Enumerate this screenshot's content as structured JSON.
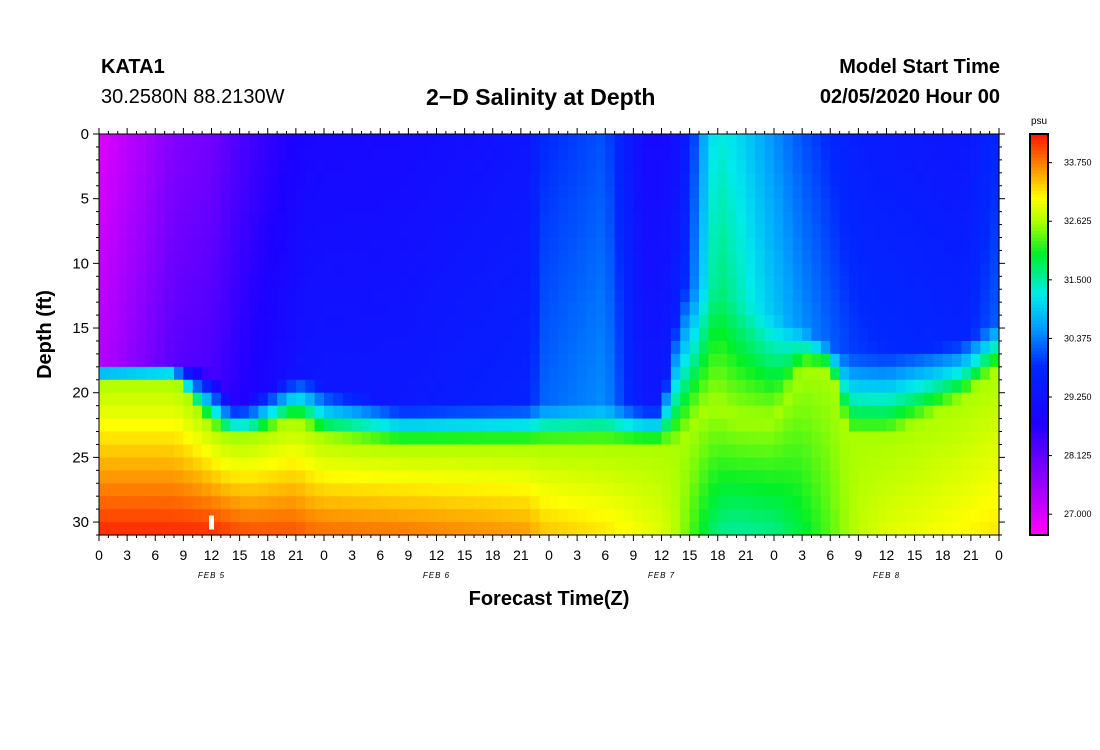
{
  "header": {
    "station": "KATA1",
    "coords": "30.2580N 88.2130W",
    "title": "2−D Salinity at Depth",
    "model_start_label": "Model Start Time",
    "model_start_date": "02/05/2020 Hour 00"
  },
  "chart_data": {
    "type": "heatmap",
    "title": "2−D Salinity at Depth",
    "xlabel": "Forecast Time(Z)",
    "ylabel": "Depth (ft)",
    "x_tick_labels": [
      "0",
      "3",
      "6",
      "9",
      "12",
      "15",
      "18",
      "21",
      "0",
      "3",
      "6",
      "9",
      "12",
      "15",
      "18",
      "21",
      "0",
      "3",
      "6",
      "9",
      "12",
      "15",
      "18",
      "21",
      "0",
      "3",
      "6",
      "9",
      "12",
      "15",
      "18",
      "21",
      "0"
    ],
    "x_range_hours": [
      0,
      96
    ],
    "day_labels": [
      {
        "label": "FEB 5",
        "hour": 12
      },
      {
        "label": "FEB 6",
        "hour": 36
      },
      {
        "label": "FEB 7",
        "hour": 60
      },
      {
        "label": "FEB 8",
        "hour": 84
      }
    ],
    "y_tick_labels": [
      "0",
      "5",
      "10",
      "15",
      "20",
      "25",
      "30"
    ],
    "y_range_ft": [
      0,
      31
    ],
    "colorbar": {
      "unit": "psu",
      "range": [
        26.6,
        34.3
      ],
      "tick_labels": [
        "33.750",
        "32.625",
        "31.500",
        "30.375",
        "29.250",
        "28.125",
        "27.000"
      ],
      "tick_values": [
        33.75,
        32.625,
        31.5,
        30.375,
        29.25,
        28.125,
        27.0
      ]
    },
    "key_hours": [
      0,
      8,
      12,
      14,
      16,
      21,
      22,
      24,
      32,
      46,
      47,
      54,
      58,
      60,
      62,
      63,
      65,
      66,
      68,
      72,
      75,
      78,
      80,
      82,
      84,
      92,
      96
    ],
    "surface_salinity": [
      26.9,
      27.8,
      27.95,
      28.2,
      28.4,
      28.8,
      28.9,
      28.95,
      29.0,
      29.3,
      29.8,
      30.1,
      29.0,
      29.0,
      29.2,
      29.7,
      31.0,
      31.3,
      31.1,
      30.5,
      30.1,
      29.8,
      29.6,
      29.5,
      29.45,
      29.3,
      29.8
    ],
    "halocline_top_ft": [
      17.5,
      17.5,
      18.5,
      20.5,
      20.5,
      18.5,
      18.5,
      19.5,
      21,
      21,
      21,
      21,
      21,
      21,
      12,
      12,
      12,
      12,
      13,
      14,
      15,
      16.5,
      17,
      17,
      17,
      16,
      14.5
    ],
    "halocline_bottom_ft": [
      19,
      19,
      22.5,
      23.5,
      23.5,
      22,
      22.5,
      23.5,
      24,
      24,
      24,
      24,
      24,
      24,
      24,
      22.5,
      21,
      21,
      22,
      22,
      18,
      18,
      23.5,
      23.5,
      23.5,
      20.5,
      18
    ],
    "bottom_salinity": [
      34.2,
      34.2,
      34.2,
      34.1,
      34.0,
      34.0,
      33.9,
      33.85,
      33.8,
      33.6,
      33.4,
      33.2,
      33.0,
      32.9,
      32.6,
      32.3,
      31.8,
      31.6,
      31.5,
      31.6,
      31.9,
      32.3,
      32.6,
      32.8,
      32.9,
      33.1,
      33.2
    ],
    "marker": {
      "hour": 12,
      "depth_ft_top": 29.5,
      "depth_ft_bottom": 30.5
    }
  }
}
